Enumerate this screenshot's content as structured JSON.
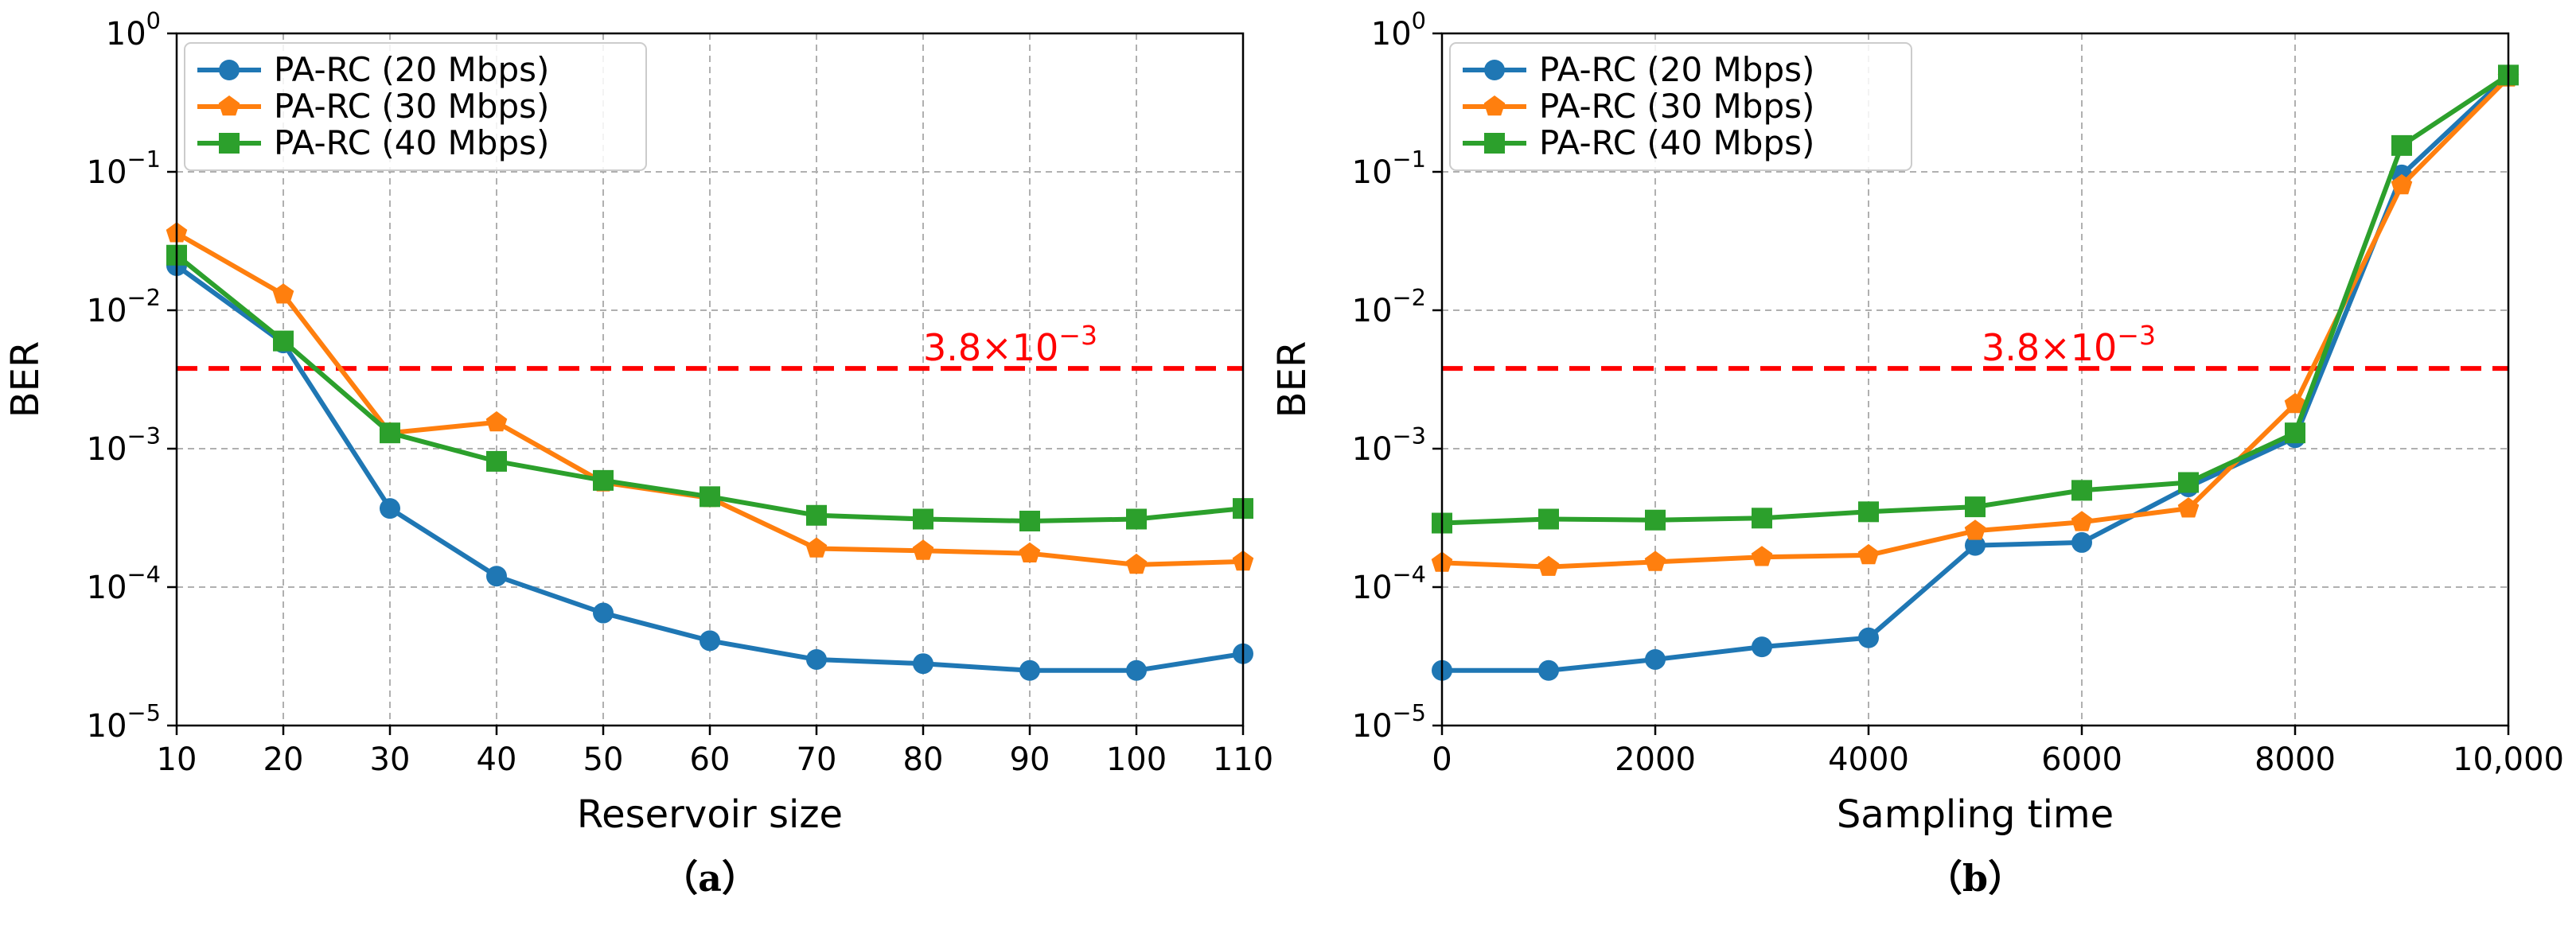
{
  "chart_data": [
    {
      "type": "line",
      "id": "a",
      "caption": "（a）",
      "xlabel": "Reservoir size",
      "ylabel": "BER",
      "yscale": "log",
      "xlim": [
        10,
        110
      ],
      "ylim_exp": [
        -5,
        0
      ],
      "x_ticks": [
        10,
        20,
        30,
        40,
        50,
        60,
        70,
        80,
        90,
        100,
        110
      ],
      "x_tick_labels": [
        "10",
        "20",
        "30",
        "40",
        "50",
        "60",
        "70",
        "80",
        "90",
        "100",
        "110"
      ],
      "y_tick_exps": [
        0,
        -1,
        -2,
        -3,
        -4,
        -5
      ],
      "y_tick_labels": [
        {
          "base": "10",
          "exp": "0"
        },
        {
          "base": "10",
          "exp": "−1"
        },
        {
          "base": "10",
          "exp": "−2"
        },
        {
          "base": "10",
          "exp": "−3"
        },
        {
          "base": "10",
          "exp": "−4"
        },
        {
          "base": "10",
          "exp": "−5"
        }
      ],
      "x": [
        10,
        20,
        30,
        40,
        50,
        60,
        70,
        80,
        90,
        100,
        110
      ],
      "series": [
        {
          "name": "PA-RC (20 Mbps)",
          "color": "#1f77b4",
          "marker": "circle",
          "values": [
            0.021,
            0.0058,
            0.00037,
            0.00012,
            6.5e-05,
            4.1e-05,
            3e-05,
            2.8e-05,
            2.5e-05,
            2.5e-05,
            3.3e-05
          ]
        },
        {
          "name": "PA-RC (30 Mbps)",
          "color": "#ff7f0e",
          "marker": "pentagon",
          "values": [
            0.036,
            0.013,
            0.0013,
            0.00155,
            0.00057,
            0.00044,
            0.00019,
            0.000183,
            0.000175,
            0.000145,
            0.000153
          ]
        },
        {
          "name": "PA-RC (40 Mbps)",
          "color": "#2ca02c",
          "marker": "square",
          "values": [
            0.025,
            0.006,
            0.0013,
            0.00081,
            0.00059,
            0.00045,
            0.00033,
            0.00031,
            0.0003,
            0.00031,
            0.00037
          ]
        }
      ],
      "threshold": {
        "value": 0.0038,
        "color": "#ff0000",
        "label_base": "3.8×10",
        "label_exp": "−3"
      }
    },
    {
      "type": "line",
      "id": "b",
      "caption": "（b）",
      "xlabel": "Sampling time",
      "ylabel": "BER",
      "yscale": "log",
      "xlim": [
        0,
        10000
      ],
      "ylim_exp": [
        -5,
        0
      ],
      "x_ticks": [
        0,
        2000,
        4000,
        6000,
        8000,
        10000
      ],
      "x_tick_labels": [
        "0",
        "2000",
        "4000",
        "6000",
        "8000",
        "10,000"
      ],
      "y_tick_exps": [
        0,
        -1,
        -2,
        -3,
        -4,
        -5
      ],
      "y_tick_labels": [
        {
          "base": "10",
          "exp": "0"
        },
        {
          "base": "10",
          "exp": "−1"
        },
        {
          "base": "10",
          "exp": "−2"
        },
        {
          "base": "10",
          "exp": "−3"
        },
        {
          "base": "10",
          "exp": "−4"
        },
        {
          "base": "10",
          "exp": "−5"
        }
      ],
      "x": [
        0,
        1000,
        2000,
        3000,
        4000,
        5000,
        6000,
        7000,
        8000,
        9000,
        10000
      ],
      "series": [
        {
          "name": "PA-RC (20 Mbps)",
          "color": "#1f77b4",
          "marker": "circle",
          "values": [
            2.5e-05,
            2.5e-05,
            3e-05,
            3.7e-05,
            4.3e-05,
            0.0002,
            0.00021,
            0.00053,
            0.0012,
            0.095,
            0.5
          ]
        },
        {
          "name": "PA-RC (30 Mbps)",
          "color": "#ff7f0e",
          "marker": "pentagon",
          "values": [
            0.00015,
            0.00014,
            0.000152,
            0.000165,
            0.00017,
            0.000255,
            0.000295,
            0.00037,
            0.0021,
            0.08,
            0.48
          ]
        },
        {
          "name": "PA-RC (40 Mbps)",
          "color": "#2ca02c",
          "marker": "square",
          "values": [
            0.00029,
            0.00031,
            0.000305,
            0.000315,
            0.00035,
            0.00038,
            0.0005,
            0.00057,
            0.0013,
            0.155,
            0.5
          ]
        }
      ],
      "threshold": {
        "value": 0.0038,
        "color": "#ff0000",
        "label_base": "3.8×10",
        "label_exp": "−3"
      }
    }
  ]
}
